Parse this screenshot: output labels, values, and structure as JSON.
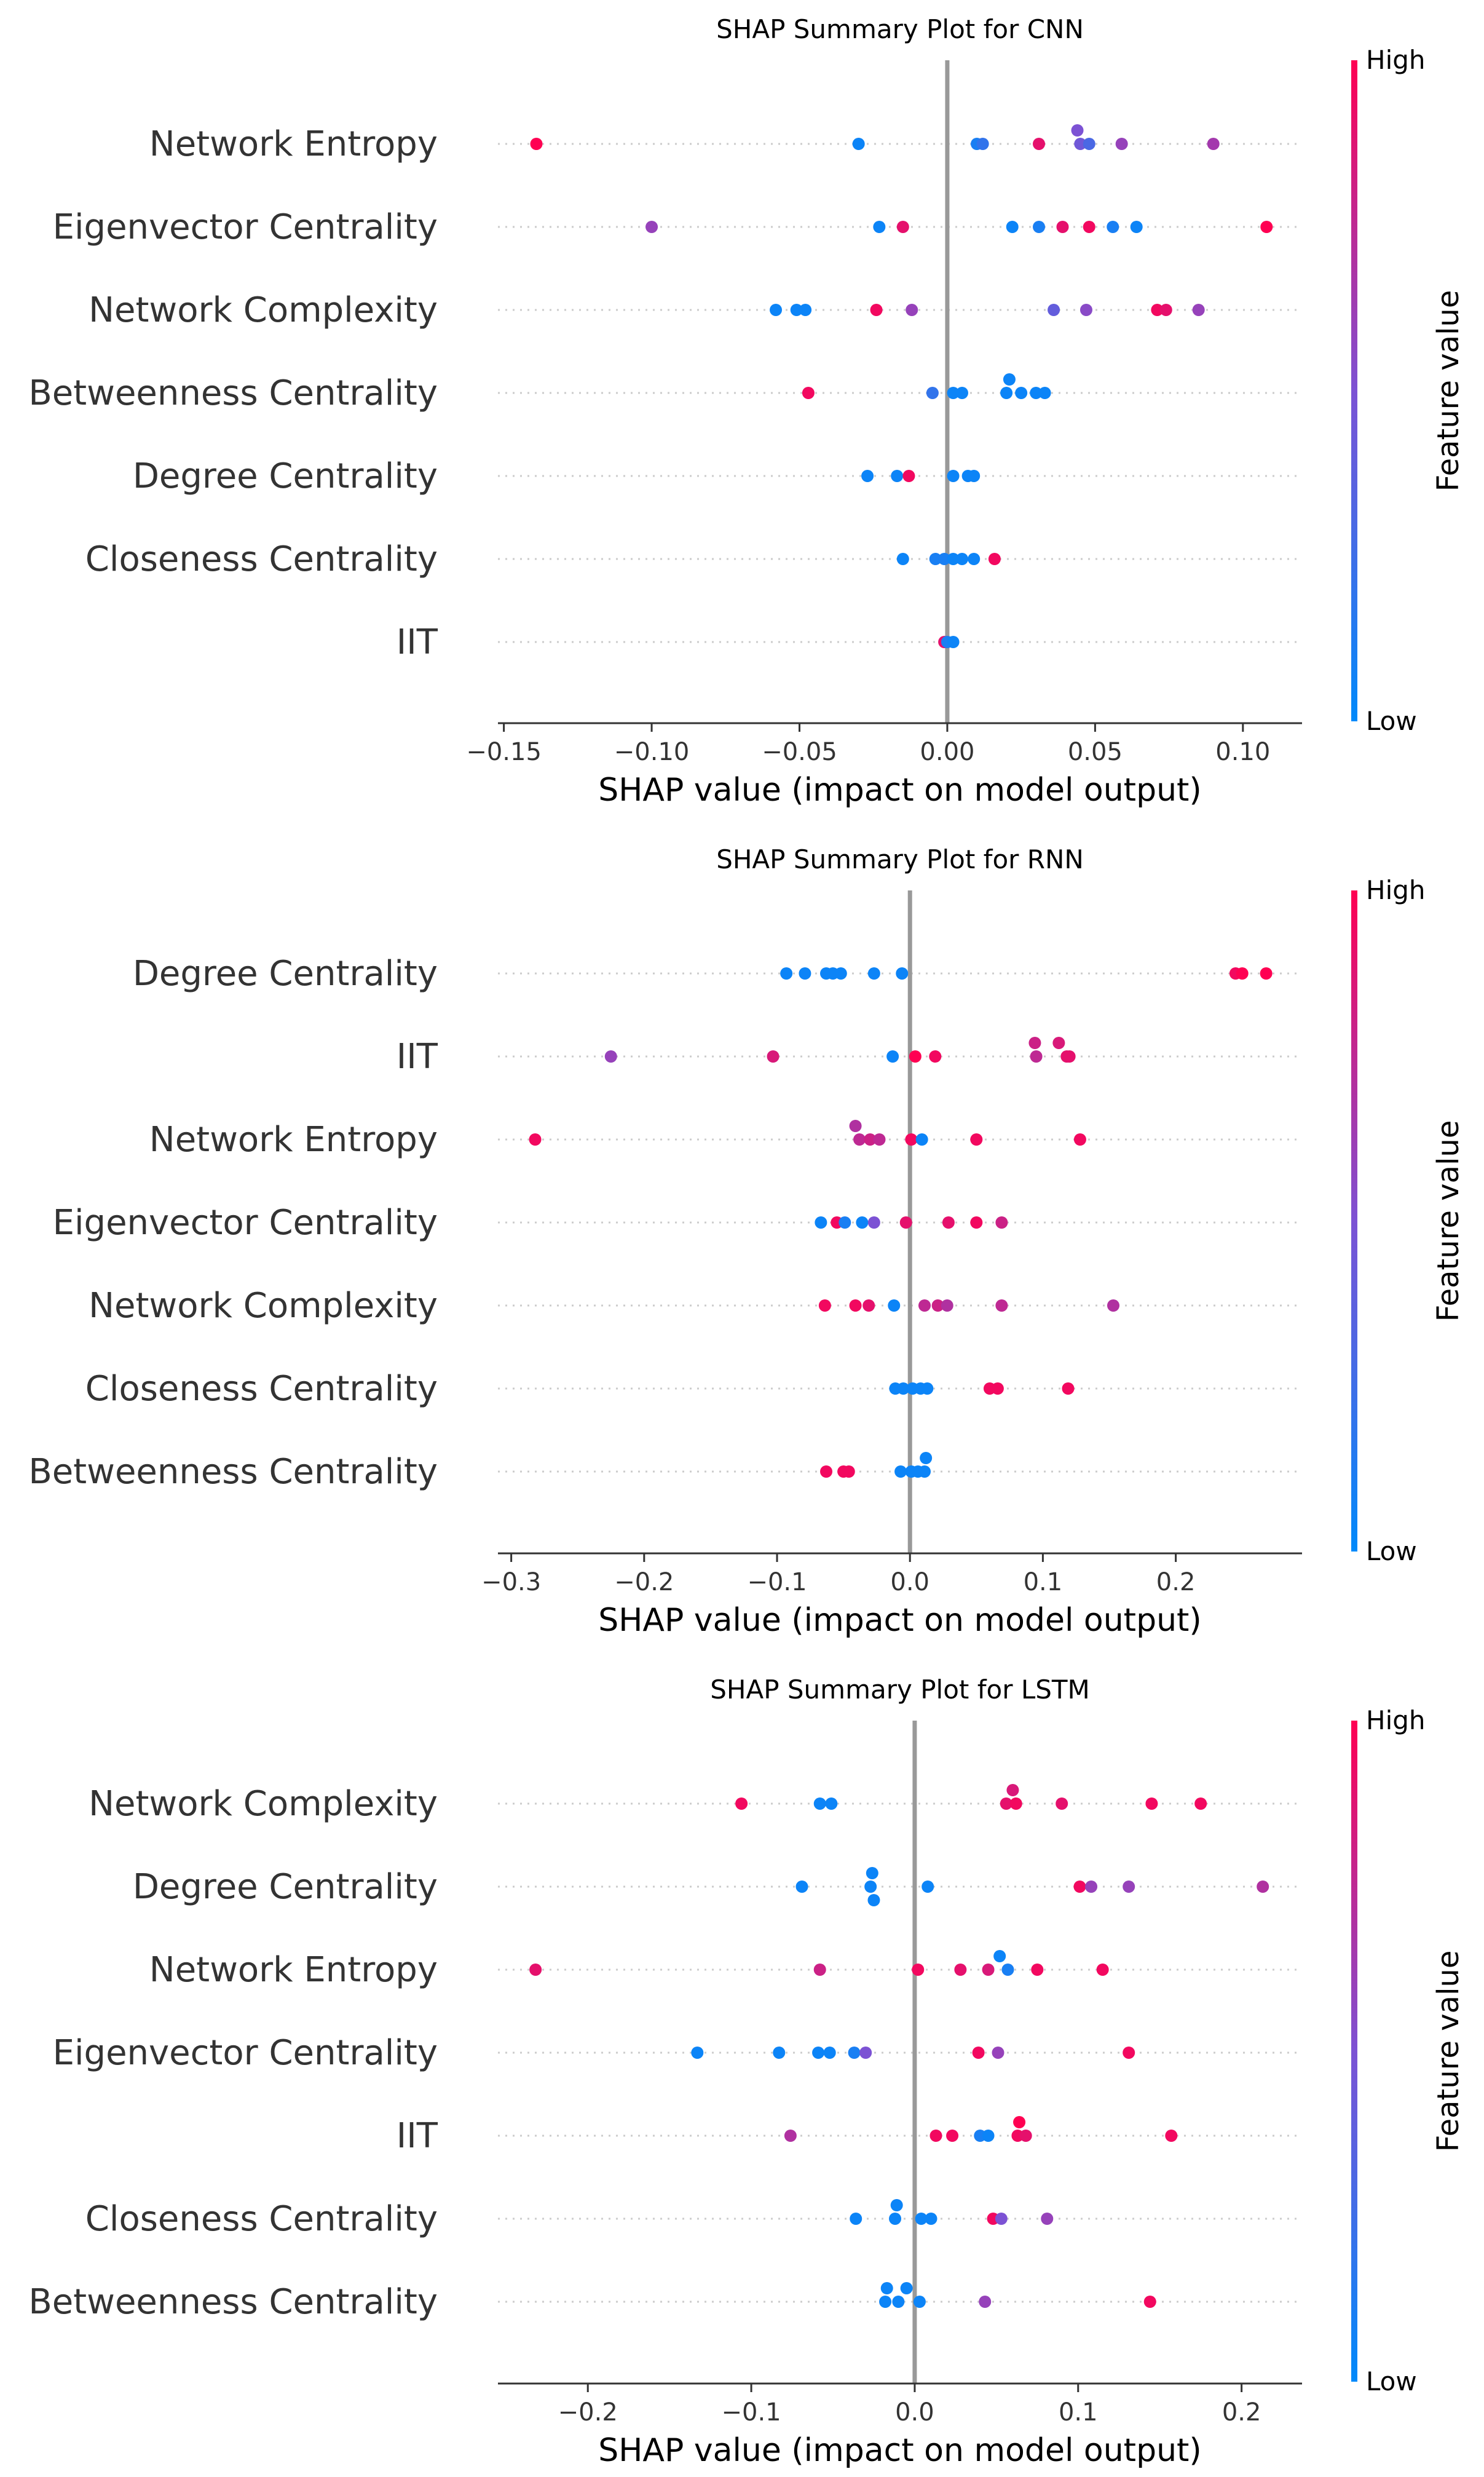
{
  "colorbar": {
    "high_label": "High",
    "low_label": "Low",
    "title": "Feature value",
    "color_low": "#008afb",
    "color_mid": "#7c52d4",
    "color_high": "#ff0052"
  },
  "chart_data": [
    {
      "type": "scatter",
      "title": "SHAP Summary Plot for CNN",
      "xlabel": "SHAP value (impact on model output)",
      "xlim": [
        -0.152,
        0.12
      ],
      "xticks": [
        -0.15,
        -0.1,
        -0.05,
        0.0,
        0.05,
        0.1
      ],
      "xtick_labels": [
        "−0.15",
        "−0.10",
        "−0.05",
        "0.00",
        "0.05",
        "0.10"
      ],
      "features": [
        {
          "name": "Network Entropy",
          "points": [
            [
              -0.139,
              1.0
            ],
            [
              -0.03,
              0.05
            ],
            [
              0.01,
              0.1
            ],
            [
              0.012,
              0.2
            ],
            [
              0.031,
              0.9
            ],
            [
              0.044,
              0.5
            ],
            [
              0.045,
              0.45
            ],
            [
              0.048,
              0.3
            ],
            [
              0.059,
              0.6
            ],
            [
              0.09,
              0.65
            ]
          ],
          "dy": [
            0,
            0,
            0,
            0,
            0,
            -0.2,
            0,
            0,
            0,
            0
          ]
        },
        {
          "name": "Eigenvector Centrality",
          "points": [
            [
              -0.1,
              0.6
            ],
            [
              -0.023,
              0.05
            ],
            [
              -0.015,
              0.9
            ],
            [
              0.022,
              0.05
            ],
            [
              0.031,
              0.1
            ],
            [
              0.039,
              0.9
            ],
            [
              0.048,
              0.95
            ],
            [
              0.056,
              0.1
            ],
            [
              0.064,
              0.05
            ],
            [
              0.108,
              1.0
            ]
          ],
          "dy": [
            0,
            0,
            0,
            0,
            0,
            0,
            0,
            0,
            0,
            0
          ]
        },
        {
          "name": "Network Complexity",
          "points": [
            [
              -0.058,
              0.05
            ],
            [
              -0.051,
              0.05
            ],
            [
              -0.048,
              0.05
            ],
            [
              -0.024,
              0.95
            ],
            [
              -0.012,
              0.6
            ],
            [
              0.036,
              0.4
            ],
            [
              0.047,
              0.55
            ],
            [
              0.071,
              0.95
            ],
            [
              0.074,
              0.9
            ],
            [
              0.085,
              0.6
            ]
          ],
          "dy": [
            0,
            0,
            0,
            0,
            0,
            0,
            0,
            0,
            0,
            0
          ]
        },
        {
          "name": "Betweenness Centrality",
          "points": [
            [
              -0.047,
              0.95
            ],
            [
              -0.005,
              0.2
            ],
            [
              0.002,
              0.05
            ],
            [
              0.005,
              0.05
            ],
            [
              0.02,
              0.05
            ],
            [
              0.021,
              0.05
            ],
            [
              0.025,
              0.05
            ],
            [
              0.03,
              0.05
            ],
            [
              0.033,
              0.05
            ]
          ],
          "dy": [
            0,
            0,
            0,
            0,
            0,
            -0.2,
            0,
            0,
            0
          ]
        },
        {
          "name": "Degree Centrality",
          "points": [
            [
              -0.027,
              0.05
            ],
            [
              -0.017,
              0.05
            ],
            [
              -0.013,
              0.95
            ],
            [
              0.002,
              0.05
            ],
            [
              0.007,
              0.05
            ],
            [
              0.009,
              0.05
            ]
          ],
          "dy": [
            0,
            0,
            0,
            0,
            0,
            0
          ]
        },
        {
          "name": "Closeness Centrality",
          "points": [
            [
              -0.015,
              0.05
            ],
            [
              -0.004,
              0.1
            ],
            [
              -0.001,
              0.1
            ],
            [
              0.002,
              0.05
            ],
            [
              0.005,
              0.05
            ],
            [
              0.009,
              0.05
            ],
            [
              0.016,
              0.95
            ]
          ],
          "dy": [
            0,
            0,
            0,
            0,
            0,
            0,
            0
          ]
        },
        {
          "name": "IIT",
          "points": [
            [
              -0.001,
              0.9
            ],
            [
              0.0,
              0.1
            ],
            [
              0.002,
              0.05
            ]
          ],
          "dy": [
            0,
            0,
            0
          ]
        }
      ]
    },
    {
      "type": "scatter",
      "title": "SHAP Summary Plot for RNN",
      "xlabel": "SHAP value (impact on model output)",
      "xlim": [
        -0.31,
        0.295
      ],
      "xticks": [
        -0.3,
        -0.2,
        -0.1,
        0.0,
        0.1,
        0.2
      ],
      "xtick_labels": [
        "−0.3",
        "−0.2",
        "−0.1",
        "0.0",
        "0.1",
        "0.2"
      ],
      "features": [
        {
          "name": "Degree Centrality",
          "points": [
            [
              -0.093,
              0.05
            ],
            [
              -0.079,
              0.05
            ],
            [
              -0.063,
              0.05
            ],
            [
              -0.058,
              0.05
            ],
            [
              -0.052,
              0.05
            ],
            [
              -0.027,
              0.05
            ],
            [
              -0.006,
              0.05
            ],
            [
              0.245,
              0.95
            ],
            [
              0.25,
              1.0
            ],
            [
              0.268,
              1.0
            ]
          ],
          "dy": [
            0,
            0,
            0,
            0,
            0,
            0,
            0,
            0,
            0,
            0
          ]
        },
        {
          "name": "IIT",
          "points": [
            [
              -0.225,
              0.6
            ],
            [
              -0.103,
              0.85
            ],
            [
              -0.013,
              0.05
            ],
            [
              0.004,
              1.0
            ],
            [
              0.019,
              0.95
            ],
            [
              0.094,
              0.8
            ],
            [
              0.095,
              0.75
            ],
            [
              0.112,
              0.85
            ],
            [
              0.118,
              0.9
            ],
            [
              0.12,
              0.9
            ]
          ],
          "dy": [
            0,
            0,
            0,
            0,
            0,
            -0.2,
            0,
            -0.2,
            0,
            0
          ]
        },
        {
          "name": "Network Entropy",
          "points": [
            [
              -0.282,
              0.95
            ],
            [
              -0.041,
              0.7
            ],
            [
              -0.038,
              0.75
            ],
            [
              -0.03,
              0.8
            ],
            [
              -0.023,
              0.75
            ],
            [
              0.001,
              0.95
            ],
            [
              0.009,
              0.05
            ],
            [
              0.05,
              0.95
            ],
            [
              0.128,
              0.95
            ]
          ],
          "dy": [
            0,
            -0.2,
            0,
            0,
            0,
            0,
            0,
            0,
            0
          ]
        },
        {
          "name": "Eigenvector Centrality",
          "points": [
            [
              -0.067,
              0.05
            ],
            [
              -0.055,
              0.95
            ],
            [
              -0.049,
              0.1
            ],
            [
              -0.036,
              0.05
            ],
            [
              -0.027,
              0.5
            ],
            [
              -0.003,
              0.9
            ],
            [
              0.029,
              0.9
            ],
            [
              0.05,
              0.95
            ],
            [
              0.069,
              0.8
            ]
          ],
          "dy": [
            0,
            0,
            0,
            0,
            0,
            0,
            0,
            0,
            0
          ]
        },
        {
          "name": "Network Complexity",
          "points": [
            [
              -0.064,
              0.95
            ],
            [
              -0.041,
              0.95
            ],
            [
              -0.031,
              0.9
            ],
            [
              -0.012,
              0.05
            ],
            [
              0.011,
              0.75
            ],
            [
              0.021,
              0.8
            ],
            [
              0.028,
              0.7
            ],
            [
              0.069,
              0.75
            ],
            [
              0.153,
              0.7
            ]
          ],
          "dy": [
            0,
            0,
            0,
            0,
            0,
            0,
            0,
            0,
            0
          ]
        },
        {
          "name": "Closeness Centrality",
          "points": [
            [
              -0.011,
              0.05
            ],
            [
              -0.005,
              0.05
            ],
            [
              0.002,
              0.05
            ],
            [
              0.008,
              0.05
            ],
            [
              0.013,
              0.05
            ],
            [
              0.06,
              0.95
            ],
            [
              0.066,
              0.95
            ],
            [
              0.119,
              0.95
            ]
          ],
          "dy": [
            0,
            0,
            0,
            0,
            0,
            0,
            0,
            0
          ]
        },
        {
          "name": "Betweenness Centrality",
          "points": [
            [
              -0.063,
              0.95
            ],
            [
              -0.05,
              0.95
            ],
            [
              -0.046,
              0.95
            ],
            [
              -0.007,
              0.05
            ],
            [
              0.001,
              0.05
            ],
            [
              0.006,
              0.05
            ],
            [
              0.011,
              0.05
            ],
            [
              0.012,
              0.05
            ]
          ],
          "dy": [
            0,
            0,
            0,
            0,
            0,
            0,
            0,
            -0.2
          ]
        }
      ]
    },
    {
      "type": "scatter",
      "title": "SHAP Summary Plot for LSTM",
      "xlabel": "SHAP value (impact on model output)",
      "xlim": [
        -0.255,
        0.237
      ],
      "xticks": [
        -0.2,
        -0.1,
        0.0,
        0.1,
        0.2
      ],
      "xtick_labels": [
        "−0.2",
        "−0.1",
        "0.0",
        "0.1",
        "0.2"
      ],
      "features": [
        {
          "name": "Network Complexity",
          "points": [
            [
              -0.106,
              0.95
            ],
            [
              -0.058,
              0.05
            ],
            [
              -0.051,
              0.05
            ],
            [
              0.056,
              0.9
            ],
            [
              0.06,
              0.85
            ],
            [
              0.062,
              0.95
            ],
            [
              0.09,
              0.9
            ],
            [
              0.145,
              0.95
            ],
            [
              0.175,
              0.95
            ]
          ],
          "dy": [
            0,
            0,
            0,
            0,
            -0.2,
            0,
            0,
            0,
            0
          ]
        },
        {
          "name": "Degree Centrality",
          "points": [
            [
              -0.069,
              0.05
            ],
            [
              -0.027,
              0.05
            ],
            [
              -0.026,
              0.05
            ],
            [
              -0.025,
              0.05
            ],
            [
              0.008,
              0.05
            ],
            [
              0.101,
              0.95
            ],
            [
              0.108,
              0.6
            ],
            [
              0.131,
              0.6
            ],
            [
              0.213,
              0.7
            ]
          ],
          "dy": [
            0,
            0,
            -0.2,
            0.2,
            0,
            0,
            0,
            0,
            0
          ]
        },
        {
          "name": "Network Entropy",
          "points": [
            [
              -0.232,
              0.9
            ],
            [
              -0.058,
              0.8
            ],
            [
              0.002,
              0.95
            ],
            [
              0.028,
              0.9
            ],
            [
              0.045,
              0.85
            ],
            [
              0.052,
              0.05
            ],
            [
              0.057,
              0.1
            ],
            [
              0.075,
              0.95
            ],
            [
              0.115,
              0.95
            ]
          ],
          "dy": [
            0,
            0,
            0,
            0,
            0,
            -0.2,
            0,
            0,
            0
          ]
        },
        {
          "name": "Eigenvector Centrality",
          "points": [
            [
              -0.133,
              0.05
            ],
            [
              -0.083,
              0.05
            ],
            [
              -0.059,
              0.05
            ],
            [
              -0.052,
              0.05
            ],
            [
              -0.037,
              0.1
            ],
            [
              -0.03,
              0.5
            ],
            [
              0.039,
              0.95
            ],
            [
              0.051,
              0.6
            ],
            [
              0.131,
              0.95
            ]
          ],
          "dy": [
            0,
            0,
            0,
            0,
            0,
            0,
            0,
            0,
            0
          ]
        },
        {
          "name": "IIT",
          "points": [
            [
              -0.076,
              0.7
            ],
            [
              0.013,
              0.95
            ],
            [
              0.023,
              0.95
            ],
            [
              0.04,
              0.1
            ],
            [
              0.045,
              0.05
            ],
            [
              0.063,
              0.95
            ],
            [
              0.064,
              1.0
            ],
            [
              0.068,
              0.9
            ],
            [
              0.157,
              0.95
            ]
          ],
          "dy": [
            0,
            0,
            0,
            0,
            0,
            0,
            -0.2,
            0,
            0
          ]
        },
        {
          "name": "Closeness Centrality",
          "points": [
            [
              -0.036,
              0.05
            ],
            [
              -0.012,
              0.05
            ],
            [
              -0.011,
              0.05
            ],
            [
              0.004,
              0.05
            ],
            [
              0.01,
              0.05
            ],
            [
              0.048,
              0.95
            ],
            [
              0.053,
              0.5
            ],
            [
              0.081,
              0.6
            ]
          ],
          "dy": [
            0,
            0,
            -0.2,
            0,
            0,
            0,
            0,
            0
          ]
        },
        {
          "name": "Betweenness Centrality",
          "points": [
            [
              -0.017,
              0.05
            ],
            [
              -0.005,
              0.05
            ],
            [
              -0.018,
              0.05
            ],
            [
              -0.01,
              0.05
            ],
            [
              0.003,
              0.05
            ],
            [
              0.043,
              0.6
            ],
            [
              0.144,
              0.95
            ]
          ],
          "dy": [
            -0.2,
            -0.2,
            0,
            0,
            0,
            0,
            0
          ]
        }
      ]
    }
  ]
}
